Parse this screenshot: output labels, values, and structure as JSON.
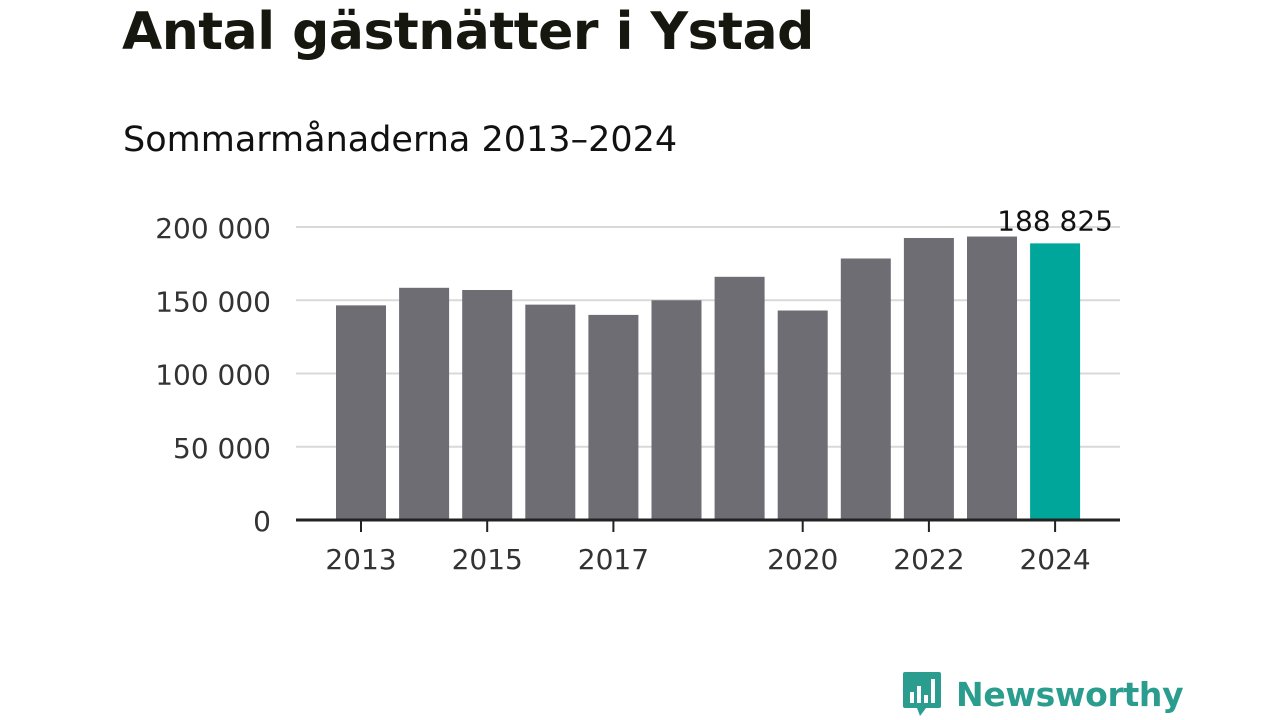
{
  "title": "Antal gästnätter i Ystad",
  "subtitle": "Sommarmånaderna 2013–2024",
  "brand": {
    "name": "Newsworthy",
    "icon": "bar-chart-speech-bubble-icon"
  },
  "colors": {
    "bar": "#6e6d74",
    "highlight": "#00a699",
    "grid": "#d9d9d9",
    "axis": "#222222",
    "brand": "#2a9d8f"
  },
  "chart_data": {
    "type": "bar",
    "title": "",
    "xlabel": "",
    "ylabel": "",
    "categories": [
      "2013",
      "2014",
      "2015",
      "2016",
      "2017",
      "2018",
      "2019",
      "2020",
      "2021",
      "2022",
      "2023",
      "2024"
    ],
    "values": [
      146500,
      158500,
      157000,
      147000,
      140000,
      150000,
      166000,
      143000,
      178500,
      192500,
      193500,
      188825
    ],
    "highlight_index": 11,
    "highlight_label": "188 825",
    "x_tick_labels": [
      "2013",
      "2015",
      "2017",
      "2020",
      "2022",
      "2024"
    ],
    "y_ticks": [
      0,
      50000,
      100000,
      150000,
      200000
    ],
    "y_tick_labels": [
      "0",
      "50 000",
      "100 000",
      "150 000",
      "200 000"
    ],
    "ylim": [
      0,
      200000
    ],
    "grid": true,
    "legend": "none"
  }
}
